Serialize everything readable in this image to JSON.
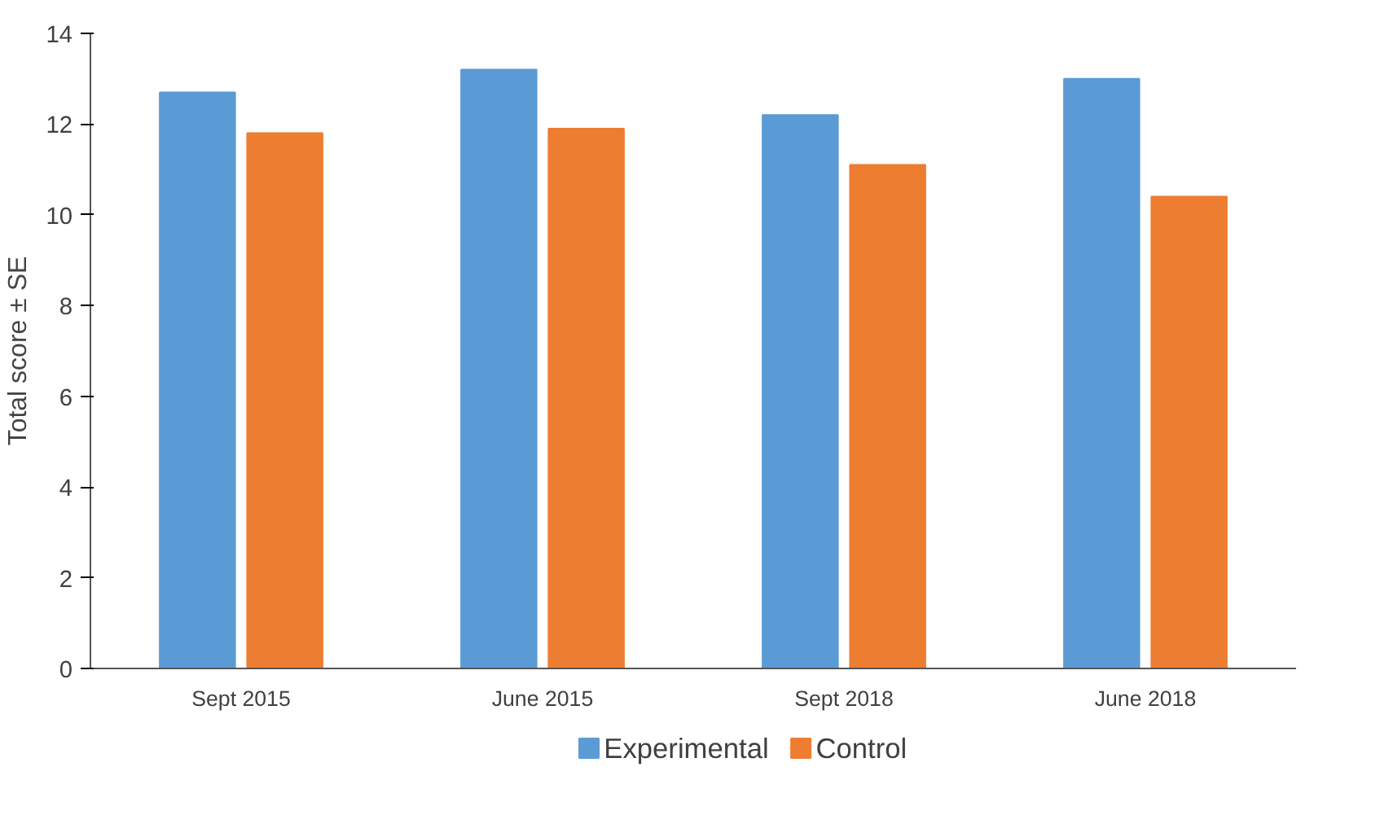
{
  "chart_data": {
    "type": "bar",
    "ylabel": "Total score ± SE",
    "categories": [
      "Sept 2015",
      "June 2015",
      "Sept 2018",
      "June 2018"
    ],
    "series": [
      {
        "name": "Experimental",
        "color": "#5b9bd5",
        "values": [
          12.7,
          13.2,
          12.2,
          13.0
        ]
      },
      {
        "name": "Control",
        "color": "#ed7d31",
        "values": [
          11.8,
          11.9,
          11.1,
          10.4
        ]
      }
    ],
    "ylim": [
      0,
      14
    ],
    "yticks": [
      0,
      2,
      4,
      6,
      8,
      10,
      12,
      14
    ],
    "grid": false,
    "legend": "bottom"
  }
}
